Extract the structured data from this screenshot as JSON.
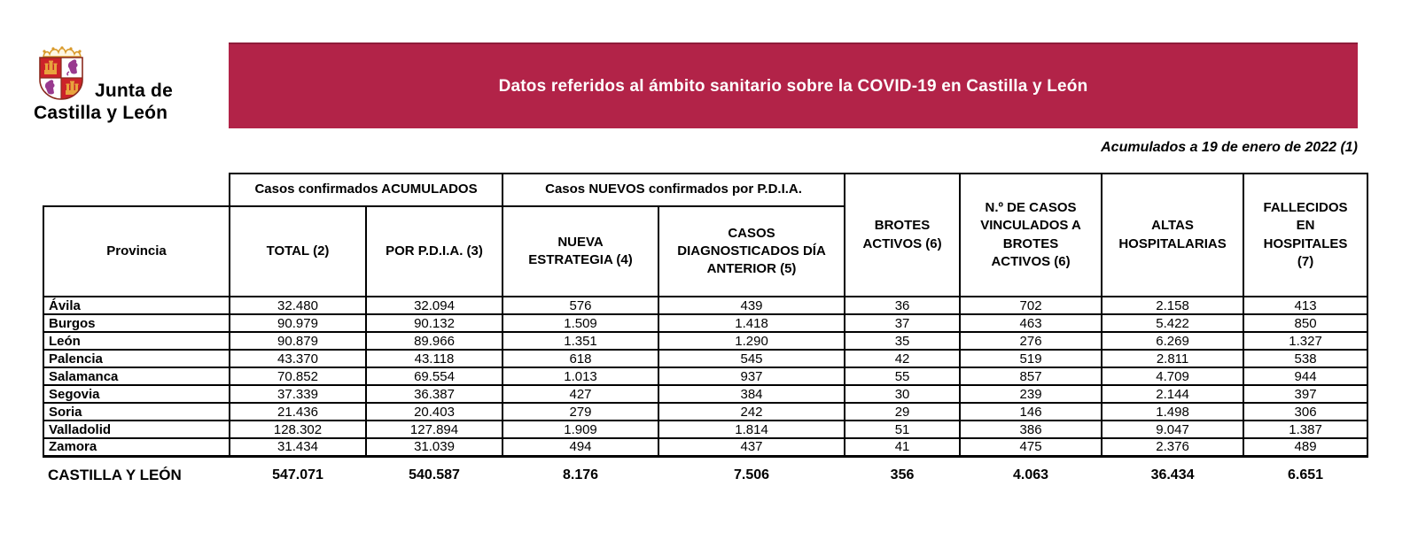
{
  "logo": {
    "line1": "Junta de",
    "line2": "Castilla y León"
  },
  "banner": {
    "title": "Datos referidos al ámbito sanitario sobre la COVID-19 en Castilla y León",
    "bg_color": "#b22348",
    "text_color": "#ffffff"
  },
  "date_note": "Acumulados a 19 de enero de 2022 (1)",
  "table": {
    "group_headers": [
      {
        "label": "Casos confirmados ACUMULADOS"
      },
      {
        "label": "Casos NUEVOS confirmados por P.D.I.A."
      }
    ],
    "columns": [
      "Provincia",
      "TOTAL (2)",
      "POR P.D.I.A. (3)",
      "NUEVA ESTRATEGIA (4)",
      "CASOS DIAGNOSTICADOS DÍA ANTERIOR (5)",
      "BROTES ACTIVOS (6)",
      "N.º DE CASOS VINCULADOS A BROTES ACTIVOS (6)",
      "ALTAS HOSPITALARIAS",
      "FALLECIDOS EN HOSPITALES (7)"
    ],
    "rows": [
      {
        "province": "Ávila",
        "values": [
          "32.480",
          "32.094",
          "576",
          "439",
          "36",
          "702",
          "2.158",
          "413"
        ]
      },
      {
        "province": "Burgos",
        "values": [
          "90.979",
          "90.132",
          "1.509",
          "1.418",
          "37",
          "463",
          "5.422",
          "850"
        ]
      },
      {
        "province": "León",
        "values": [
          "90.879",
          "89.966",
          "1.351",
          "1.290",
          "35",
          "276",
          "6.269",
          "1.327"
        ]
      },
      {
        "province": "Palencia",
        "values": [
          "43.370",
          "43.118",
          "618",
          "545",
          "42",
          "519",
          "2.811",
          "538"
        ]
      },
      {
        "province": "Salamanca",
        "values": [
          "70.852",
          "69.554",
          "1.013",
          "937",
          "55",
          "857",
          "4.709",
          "944"
        ]
      },
      {
        "province": "Segovia",
        "values": [
          "37.339",
          "36.387",
          "427",
          "384",
          "30",
          "239",
          "2.144",
          "397"
        ]
      },
      {
        "province": "Soria",
        "values": [
          "21.436",
          "20.403",
          "279",
          "242",
          "29",
          "146",
          "1.498",
          "306"
        ]
      },
      {
        "province": "Valladolid",
        "values": [
          "128.302",
          "127.894",
          "1.909",
          "1.814",
          "51",
          "386",
          "9.047",
          "1.387"
        ]
      },
      {
        "province": "Zamora",
        "values": [
          "31.434",
          "31.039",
          "494",
          "437",
          "41",
          "475",
          "2.376",
          "489"
        ]
      }
    ],
    "footer": {
      "label": "CASTILLA Y LEÓN",
      "values": [
        "547.071",
        "540.587",
        "8.176",
        "7.506",
        "356",
        "4.063",
        "36.434",
        "6.651"
      ]
    }
  }
}
